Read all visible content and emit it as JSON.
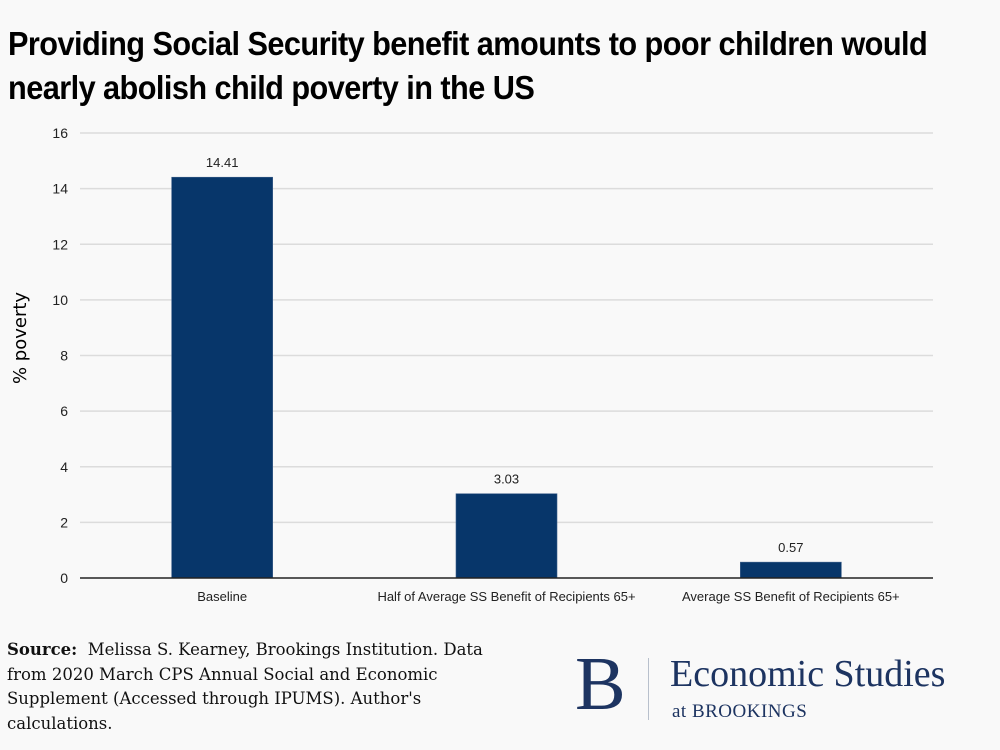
{
  "chart_data": {
    "type": "bar",
    "title": "Providing Social Security benefit amounts to poor children would nearly abolish child poverty in the US",
    "xlabel": "",
    "ylabel": "% poverty",
    "ylim": [
      0,
      16
    ],
    "yticks": [
      0,
      2,
      4,
      6,
      8,
      10,
      12,
      14,
      16
    ],
    "grid": true,
    "categories": [
      "Baseline",
      "Half of Average SS Benefit of Recipients 65+",
      "Average SS Benefit of Recipients 65+"
    ],
    "values": [
      14.41,
      3.03,
      0.57
    ],
    "data_labels": [
      "14.41",
      "3.03",
      "0.57"
    ],
    "bar_color": "#07366a"
  },
  "source": {
    "label": "Source:",
    "text": "Melissa S. Kearney, Brookings Institution. Data from 2020 March CPS Annual Social and Economic Supplement (Accessed through IPUMS). Author's calculations."
  },
  "logo": {
    "letter": "B",
    "main": "Economic Studies",
    "sub": "at BROOKINGS",
    "color": "#1d3461"
  }
}
